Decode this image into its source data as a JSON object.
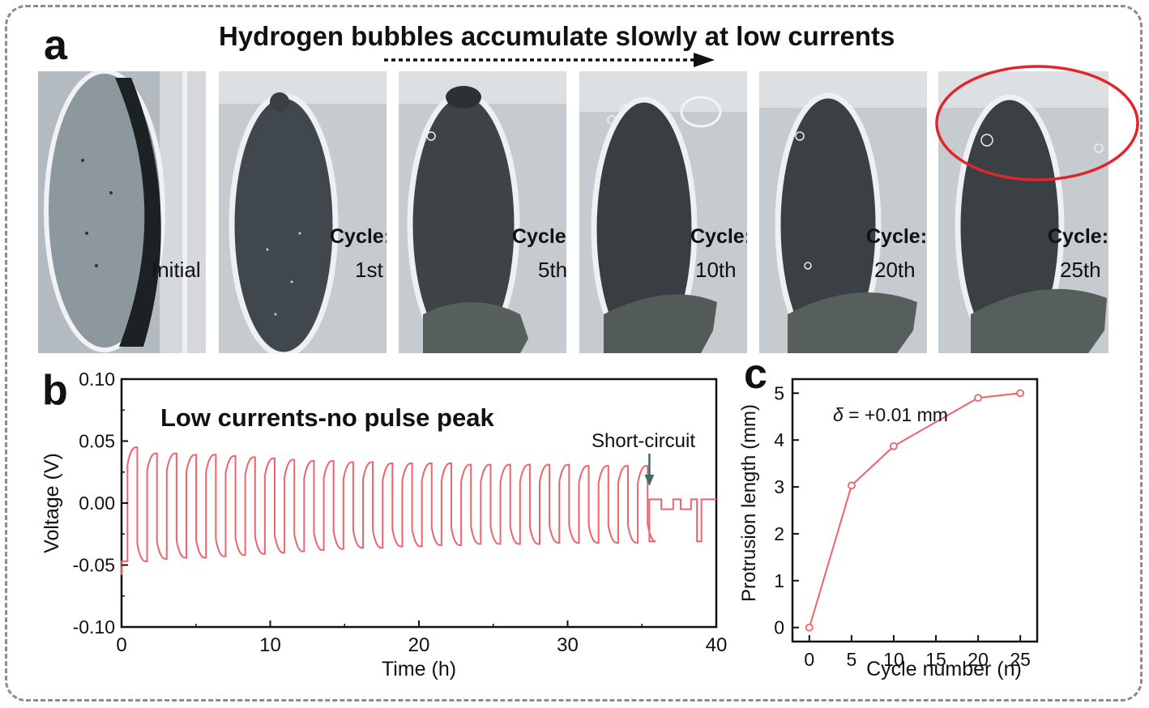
{
  "panel_a": {
    "letter": "a",
    "title": "Hydrogen bubbles accumulate slowly at low currents",
    "photos": [
      {
        "label": "",
        "value": "Initial"
      },
      {
        "label": "Cycle:",
        "value": "1st"
      },
      {
        "label": "Cycle:",
        "value": "5th"
      },
      {
        "label": "Cycle:",
        "value": "10th"
      },
      {
        "label": "Cycle:",
        "value": "20th"
      },
      {
        "label": "Cycle:",
        "value": "25th"
      }
    ],
    "highlight_color": "#e0262b"
  },
  "panel_b": {
    "letter": "b"
  },
  "panel_c": {
    "letter": "c"
  },
  "chart_data": [
    {
      "type": "line",
      "title": "Low currents-no pulse peak",
      "xlabel": "Time (h)",
      "ylabel": "Voltage (V)",
      "xlim": [
        0,
        40
      ],
      "ylim": [
        -0.1,
        0.1
      ],
      "xticks": [
        "0",
        "10",
        "20",
        "30",
        "40"
      ],
      "yticks": [
        "0.10",
        "0.05",
        "0.00",
        "-0.05",
        "-0.10"
      ],
      "annotation": {
        "text": "Short-circuit",
        "x": 35.5
      },
      "line_color": "#f0636a",
      "cycle_period_h": 1.32,
      "cycles": 27,
      "cycle_peaks": [
        0.045,
        0.04,
        0.04,
        0.039,
        0.039,
        0.038,
        0.037,
        0.036,
        0.035,
        0.034,
        0.034,
        0.033,
        0.033,
        0.032,
        0.032,
        0.032,
        0.032,
        0.031,
        0.031,
        0.031,
        0.031,
        0.031,
        0.031,
        0.03,
        0.03,
        0.03,
        0.03
      ],
      "cycle_troughs": [
        -0.047,
        -0.045,
        -0.044,
        -0.044,
        -0.043,
        -0.042,
        -0.041,
        -0.04,
        -0.039,
        -0.038,
        -0.037,
        -0.036,
        -0.036,
        -0.035,
        -0.035,
        -0.034,
        -0.034,
        -0.033,
        -0.033,
        -0.033,
        -0.033,
        -0.032,
        -0.032,
        -0.032,
        -0.032,
        -0.032,
        -0.031
      ],
      "short_circuit_segment": [
        [
          35.5,
          0.003
        ],
        [
          36.3,
          0.003
        ],
        [
          36.3,
          -0.005
        ],
        [
          37.1,
          -0.005
        ],
        [
          37.1,
          0.003
        ],
        [
          37.6,
          0.003
        ],
        [
          37.6,
          -0.005
        ],
        [
          38.3,
          -0.005
        ],
        [
          38.3,
          0.003
        ],
        [
          38.7,
          0.003
        ],
        [
          38.7,
          -0.031
        ],
        [
          39.0,
          -0.031
        ],
        [
          39.0,
          0.003
        ],
        [
          40.0,
          0.003
        ]
      ]
    },
    {
      "type": "line",
      "xlabel": "Cycle number (n)",
      "ylabel": "Protrusion length (mm)",
      "xlim": [
        -2,
        27
      ],
      "ylim": [
        -0.3,
        5.3
      ],
      "xticks": [
        0,
        5,
        10,
        15,
        20,
        25
      ],
      "yticks": [
        0,
        1,
        2,
        3,
        4,
        5
      ],
      "annotation": {
        "symbol": "δ",
        "text": " = +0.01 mm"
      },
      "line_color": "#f0636a",
      "x": [
        0,
        5,
        10,
        20,
        25
      ],
      "y": [
        0,
        3.03,
        3.87,
        4.9,
        5.0
      ]
    }
  ]
}
